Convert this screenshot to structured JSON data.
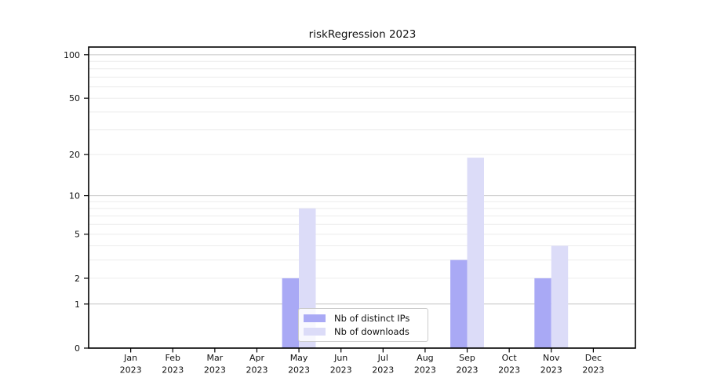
{
  "title": "riskRegression 2023",
  "chart_data": {
    "type": "bar",
    "title": "riskRegression 2023",
    "yscale": "log1p",
    "ylim": [
      0,
      113
    ],
    "grid": true,
    "legend_position": "bottom-center",
    "x_labels": [
      [
        "Jan",
        "2023"
      ],
      [
        "Feb",
        "2023"
      ],
      [
        "Mar",
        "2023"
      ],
      [
        "Apr",
        "2023"
      ],
      [
        "May",
        "2023"
      ],
      [
        "Jun",
        "2023"
      ],
      [
        "Jul",
        "2023"
      ],
      [
        "Aug",
        "2023"
      ],
      [
        "Sep",
        "2023"
      ],
      [
        "Oct",
        "2023"
      ],
      [
        "Nov",
        "2023"
      ],
      [
        "Dec",
        "2023"
      ]
    ],
    "yticks": [
      0,
      1,
      2,
      5,
      10,
      20,
      50,
      100
    ],
    "major_gridlines": [
      1,
      10,
      100
    ],
    "minor_gridlines": [
      2,
      3,
      4,
      5,
      6,
      7,
      8,
      9,
      20,
      30,
      40,
      50,
      60,
      70,
      80,
      90
    ],
    "series": [
      {
        "name": "Nb of distinct IPs",
        "color": "#a9a9f5",
        "values": [
          0,
          0,
          0,
          0,
          2,
          0,
          0,
          0,
          3,
          0,
          2,
          0
        ]
      },
      {
        "name": "Nb of downloads",
        "color": "#dcdcf8",
        "values": [
          0,
          0,
          0,
          0,
          8,
          0,
          0,
          0,
          19,
          0,
          4,
          0
        ]
      }
    ]
  }
}
